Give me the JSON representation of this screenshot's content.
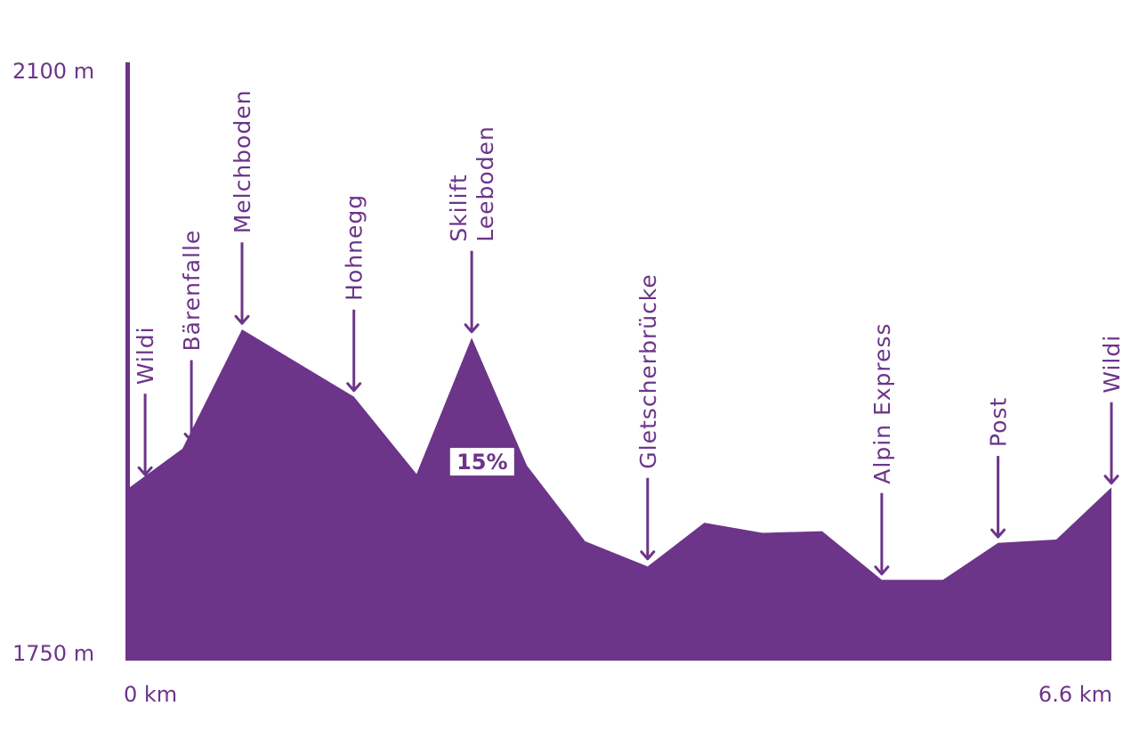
{
  "chart_data": {
    "type": "area",
    "title": "",
    "xlabel": "",
    "ylabel": "",
    "xlim": [
      0,
      6.6
    ],
    "ylim": [
      1750,
      2100
    ],
    "x_tick_labels": [
      "0 km",
      "6.6 km"
    ],
    "y_tick_labels": [
      "2100 m",
      "1750 m"
    ],
    "grid": false,
    "legend": "none",
    "fill_color": "#6c3589",
    "series": [
      {
        "x": [
          0,
          0.37,
          0.77,
          1.52,
          1.94,
          2.31,
          2.68,
          3.07,
          3.49,
          3.87,
          4.26,
          4.66,
          5.06,
          5.47,
          5.84,
          6.23,
          6.6
        ],
        "y": [
          1852,
          1876,
          1947,
          1907,
          1861,
          1942,
          1866,
          1821,
          1806,
          1832,
          1826,
          1827,
          1798,
          1798,
          1820,
          1822,
          1853
        ]
      }
    ],
    "annotations": [
      {
        "id": "wildi-start",
        "lines": [
          "Wildi"
        ],
        "x": 0.12,
        "y": 1860
      },
      {
        "id": "barenfalle",
        "lines": [
          "Bärenfalle"
        ],
        "x": 0.43,
        "y": 1880
      },
      {
        "id": "melchboden",
        "lines": [
          "Melchboden"
        ],
        "x": 0.77,
        "y": 1950
      },
      {
        "id": "hohnegg",
        "lines": [
          "Hohnegg"
        ],
        "x": 1.52,
        "y": 1910
      },
      {
        "id": "skilift-leeboden",
        "lines": [
          "Skilift",
          "Leeboden"
        ],
        "x": 2.31,
        "y": 1945
      },
      {
        "id": "gletscherbrucke",
        "lines": [
          "Gletscherbrücke"
        ],
        "x": 3.49,
        "y": 1810
      },
      {
        "id": "alpin-express",
        "lines": [
          "Alpin Express"
        ],
        "x": 5.06,
        "y": 1801
      },
      {
        "id": "post",
        "lines": [
          "Post"
        ],
        "x": 5.84,
        "y": 1823
      },
      {
        "id": "wildi-end",
        "lines": [
          "Wildi"
        ],
        "x": 6.6,
        "y": 1855
      }
    ],
    "grade_label": {
      "text": "15%",
      "x": 2.38,
      "y": 1868
    }
  }
}
